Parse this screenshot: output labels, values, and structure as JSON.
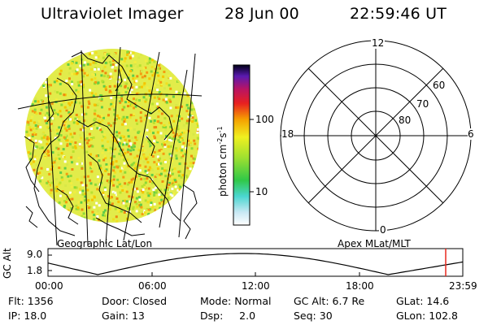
{
  "header": {
    "instrument": "Ultraviolet Imager",
    "date": "28 Jun 00",
    "time": "22:59:46 UT"
  },
  "colorbar": {
    "label": "photon cm",
    "label_exp1": "-2",
    "label_s": "s",
    "label_exp2": "-1",
    "ticks": [
      "100",
      "10"
    ],
    "scale": "log"
  },
  "geo_panel": {
    "caption": "Geographic Lat/Lon"
  },
  "polar_panel": {
    "caption": "Apex MLat/MLT",
    "mlt_labels": {
      "top": "12",
      "right": "6",
      "bottom": "0",
      "left": "18"
    },
    "mlat_labels": [
      "60",
      "70",
      "80"
    ]
  },
  "altitude_plot": {
    "ylabel": "GC Alt",
    "y_ticks": [
      "9.0",
      "1.8"
    ],
    "x_ticks": [
      "00:00",
      "06:00",
      "12:00",
      "18:00",
      "23:59"
    ],
    "marker_color": "#e8281e"
  },
  "footer": {
    "row1": [
      {
        "label": "Flt:",
        "value": "1356"
      },
      {
        "label": "Door:",
        "value": "Closed"
      },
      {
        "label": "Mode:",
        "value": "Normal"
      },
      {
        "label": "GC Alt:",
        "value": "6.7 Re"
      },
      {
        "label": "GLat:",
        "value": "14.6"
      }
    ],
    "row2": [
      {
        "label": "IP:",
        "value": "18.0"
      },
      {
        "label": "Gain:",
        "value": "13"
      },
      {
        "label": "Dsp:",
        "value": "2.0"
      },
      {
        "label": "Seq:",
        "value": "30"
      },
      {
        "label": "GLon:",
        "value": "102.8"
      }
    ]
  }
}
